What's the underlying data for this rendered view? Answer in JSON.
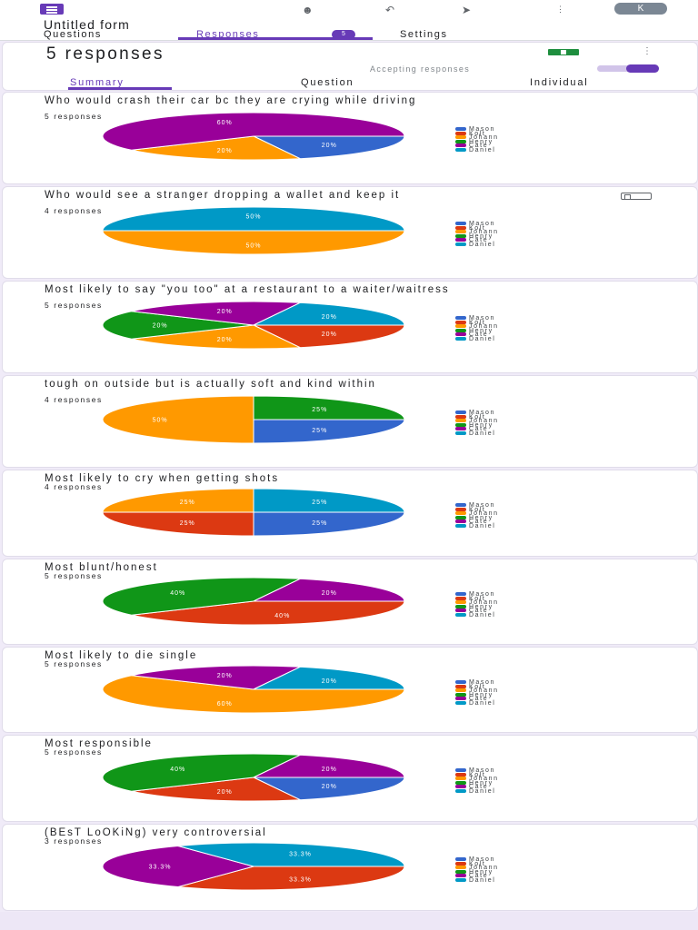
{
  "header": {
    "form_title": "Untitled form",
    "tabs": [
      {
        "label": "Questions"
      },
      {
        "label": "Responses",
        "badge": "5"
      },
      {
        "label": "Settings"
      }
    ],
    "avatar_initial": "K",
    "icons": [
      "palette-icon",
      "undo-icon",
      "send-icon",
      "more-vert-icon"
    ]
  },
  "summary": {
    "title": "5 responses",
    "accepting_label": "Accepting responses",
    "accepting_on": true,
    "subtabs": [
      {
        "label": "Summary"
      },
      {
        "label": "Question"
      },
      {
        "label": "Individual"
      }
    ]
  },
  "legend": {
    "names": [
      "Mason",
      "Kolt",
      "Johann",
      "Henry",
      "Cate",
      "Daniel"
    ],
    "colors": [
      "#3366cc",
      "#dc3912",
      "#ff9900",
      "#109618",
      "#990099",
      "#0099c6"
    ]
  },
  "questions": [
    {
      "title": "Who would crash their car bc they are crying while driving",
      "count": "5 responses"
    },
    {
      "title": "Who would see a stranger dropping a wallet and keep it",
      "count": "4 responses"
    },
    {
      "title": "Most likely to say \"you too\" at a restaurant to a waiter/waitress",
      "count": "5 responses"
    },
    {
      "title": "tough on outside but is actually soft and kind within",
      "count": "4 responses"
    },
    {
      "title": "Most likely to cry when getting shots",
      "count": "4 responses"
    },
    {
      "title": "Most blunt/honest",
      "count": "5 responses"
    },
    {
      "title": "Most likely to die single",
      "count": "5 responses"
    },
    {
      "title": "Most responsible",
      "count": "5 responses"
    },
    {
      "title": "(BEsT LoOKiNg) very controversial",
      "count": "3 responses"
    }
  ],
  "chart_data": [
    {
      "type": "pie",
      "title": "Who would crash their car bc they are crying while driving",
      "legend": "right",
      "slices": [
        {
          "name": "Mason",
          "value": 20,
          "label": "20%"
        },
        {
          "name": "Johann",
          "value": 20,
          "label": "20%"
        },
        {
          "name": "Cate",
          "value": 60,
          "label": "60%"
        }
      ]
    },
    {
      "type": "pie",
      "title": "Who would see a stranger dropping a wallet and keep it",
      "legend": "right",
      "slices": [
        {
          "name": "Johann",
          "value": 50,
          "label": "50%"
        },
        {
          "name": "Daniel",
          "value": 50,
          "label": "50%"
        }
      ]
    },
    {
      "type": "pie",
      "title": "Most likely to say \"you too\" at a restaurant to a waiter/waitress",
      "legend": "right",
      "slices": [
        {
          "name": "Kolt",
          "value": 20,
          "label": "20%"
        },
        {
          "name": "Johann",
          "value": 20,
          "label": "20%"
        },
        {
          "name": "Henry",
          "value": 20,
          "label": "20%"
        },
        {
          "name": "Cate",
          "value": 20,
          "label": "20%"
        },
        {
          "name": "Daniel",
          "value": 20,
          "label": "20%"
        }
      ]
    },
    {
      "type": "pie",
      "title": "tough on outside but is actually soft and kind within",
      "legend": "right",
      "slices": [
        {
          "name": "Mason",
          "value": 25,
          "label": "25%"
        },
        {
          "name": "Johann",
          "value": 50,
          "label": "50%"
        },
        {
          "name": "Henry",
          "value": 25,
          "label": "25%"
        }
      ]
    },
    {
      "type": "pie",
      "title": "Most likely to cry when getting shots",
      "legend": "right",
      "slices": [
        {
          "name": "Mason",
          "value": 25,
          "label": "25%"
        },
        {
          "name": "Kolt",
          "value": 25,
          "label": "25%"
        },
        {
          "name": "Johann",
          "value": 25,
          "label": "25%"
        },
        {
          "name": "Daniel",
          "value": 25,
          "label": "25%"
        }
      ]
    },
    {
      "type": "pie",
      "title": "Most blunt/honest",
      "legend": "right",
      "slices": [
        {
          "name": "Kolt",
          "value": 40,
          "label": "40%"
        },
        {
          "name": "Henry",
          "value": 40,
          "label": "40%"
        },
        {
          "name": "Cate",
          "value": 20,
          "label": "20%"
        }
      ]
    },
    {
      "type": "pie",
      "title": "Most likely to die single",
      "legend": "right",
      "slices": [
        {
          "name": "Johann",
          "value": 60,
          "label": "60%"
        },
        {
          "name": "Cate",
          "value": 20,
          "label": "20%"
        },
        {
          "name": "Daniel",
          "value": 20,
          "label": "20%"
        }
      ]
    },
    {
      "type": "pie",
      "title": "Most responsible",
      "legend": "right",
      "slices": [
        {
          "name": "Mason",
          "value": 20,
          "label": "20%"
        },
        {
          "name": "Kolt",
          "value": 20,
          "label": "20%"
        },
        {
          "name": "Henry",
          "value": 40,
          "label": "40%"
        },
        {
          "name": "Cate",
          "value": 20,
          "label": "20%"
        }
      ]
    },
    {
      "type": "pie",
      "title": "(BEsT LoOKiNg) very controversial",
      "legend": "right",
      "slices": [
        {
          "name": "Kolt",
          "value": 33.3,
          "label": "33.3%"
        },
        {
          "name": "Cate",
          "value": 33.3,
          "label": "33.3%"
        },
        {
          "name": "Daniel",
          "value": 33.3,
          "label": "33.3%"
        }
      ]
    }
  ]
}
